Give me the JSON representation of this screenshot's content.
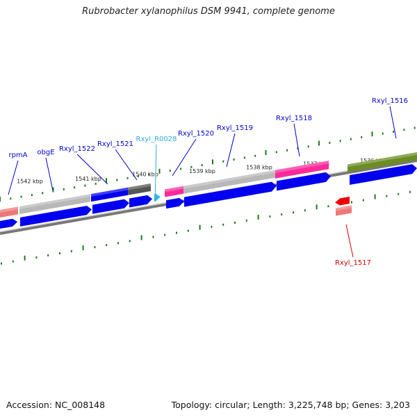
{
  "title": "Rubrobacter xylanophilus DSM 9941, complete genome",
  "footer": {
    "accession": "Accession: NC_008148",
    "topology": "Topology: circular; Length: 3,225,748 bp; Genes: 3,203"
  },
  "colors": {
    "cds": "#0000ee",
    "gene_gray": "#b8b8b8",
    "gene_pink": "#ff2a9a",
    "gene_olive": "#6b8e23",
    "gene_salmon": "#ee7777",
    "ncrna": "#33bbee",
    "trna": "#ee0000",
    "tick": "#1a7a1a",
    "label_forward": "#0000cc",
    "label_ncrna": "#33aadd",
    "label_reverse": "#cc0000"
  },
  "kbp_ticks": [
    "1542 kbp",
    "1541 kbp",
    "1540 kbp",
    "1539 kbp",
    "1538 kbp",
    "1537 kbp",
    "1536 kbp"
  ],
  "gene_labels": [
    "rpmA",
    "obgE",
    "Rxyl_1522",
    "Rxyl_1521",
    "Rxyl_R0028",
    "Rxyl_1520",
    "Rxyl_1519",
    "Rxyl_1518",
    "Rxyl_1516",
    "Rxyl_1517"
  ]
}
